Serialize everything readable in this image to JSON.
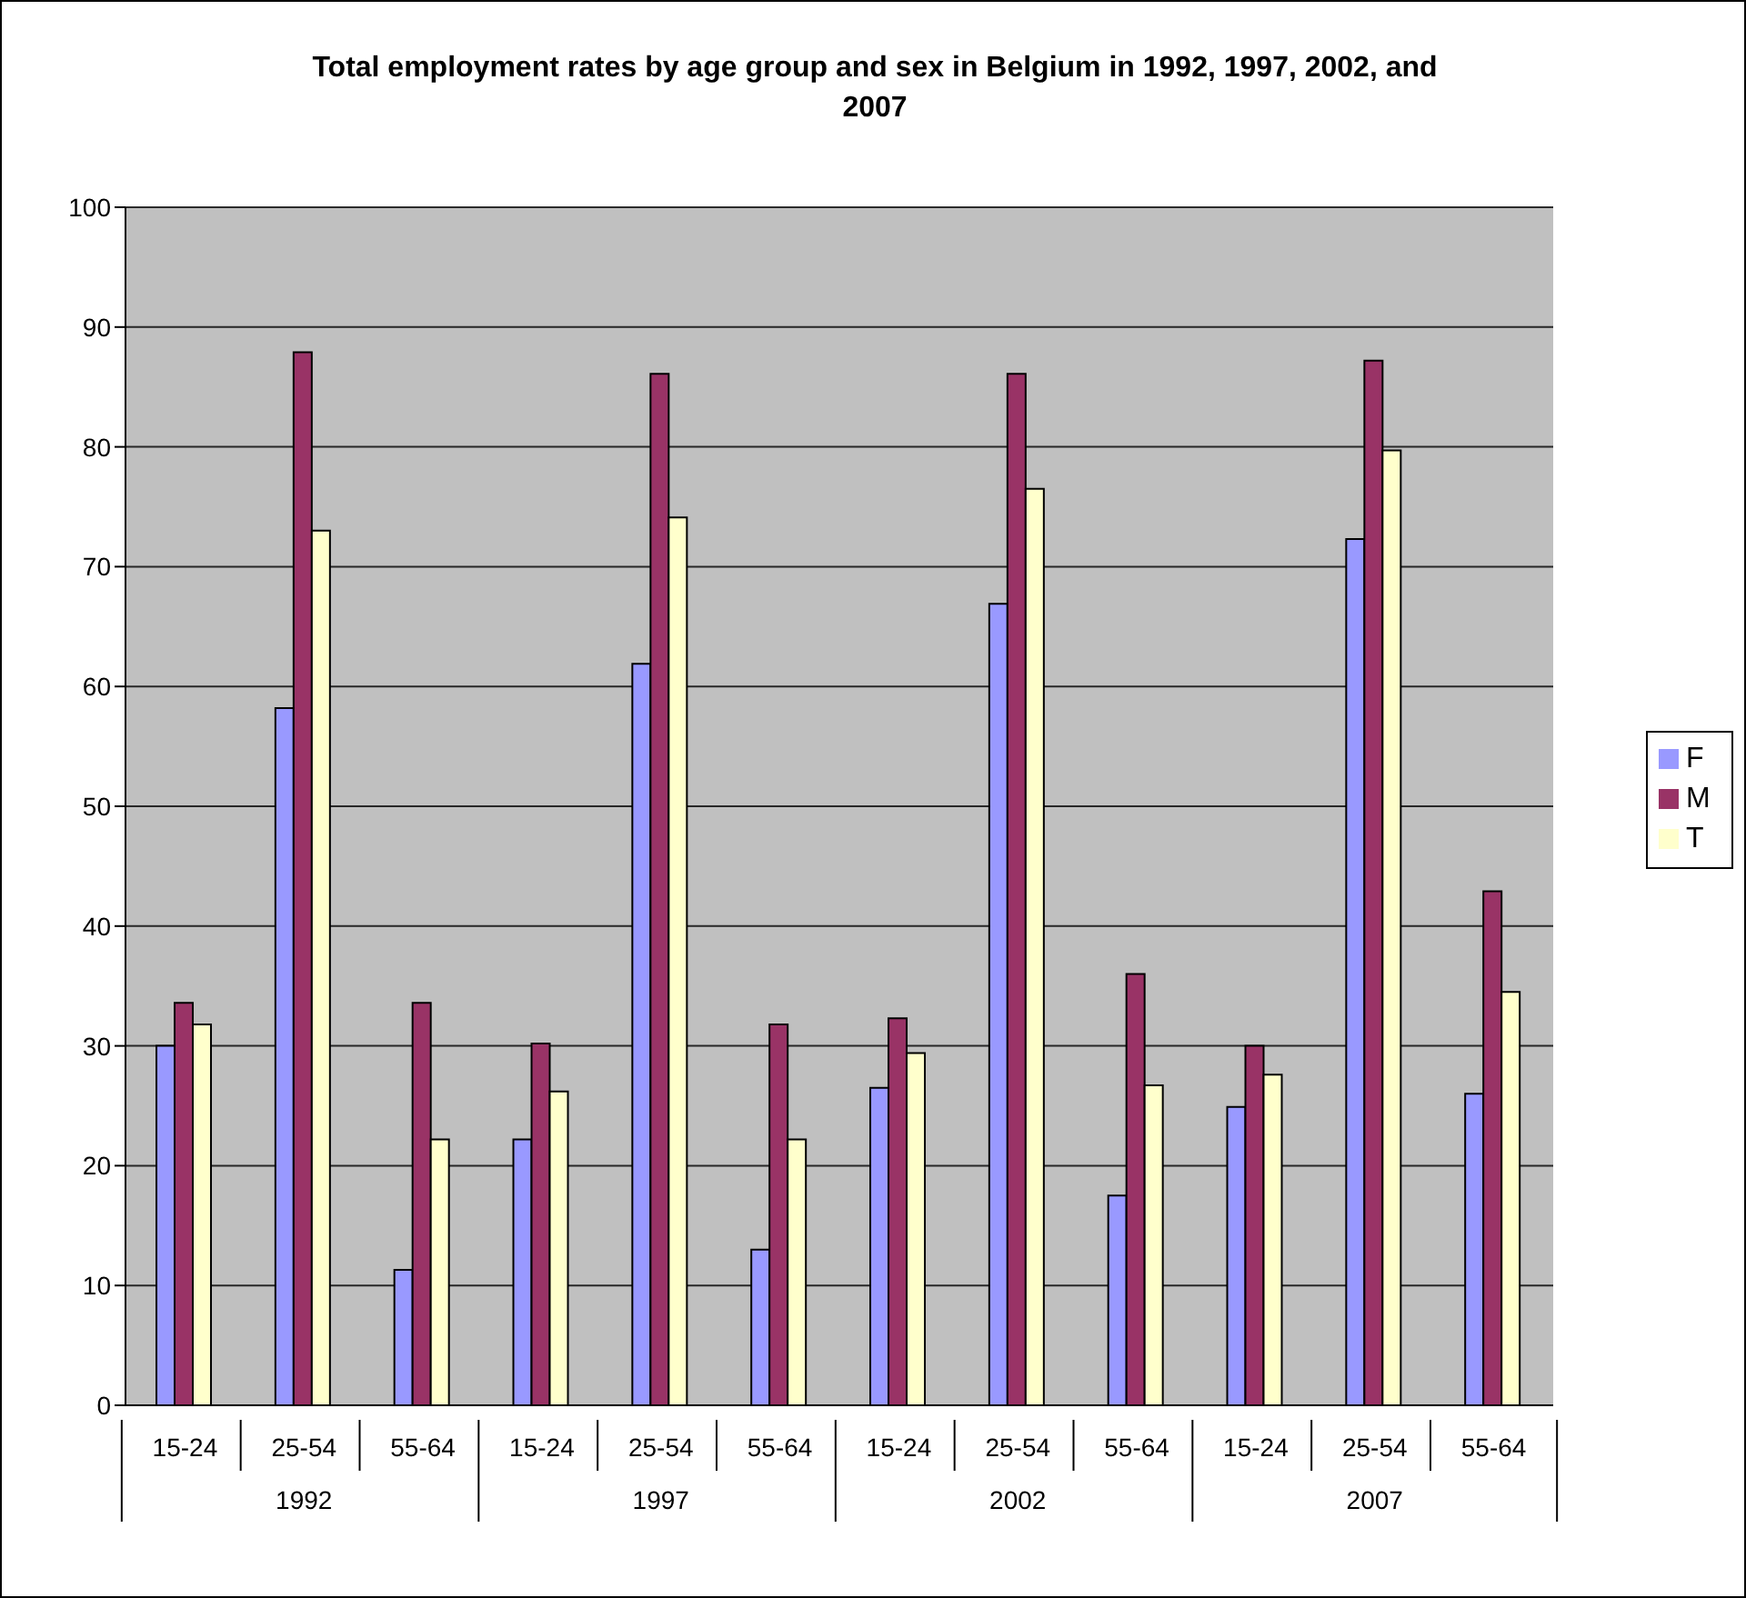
{
  "chart_data": {
    "type": "bar",
    "title": "Total employment rates by age group and sex in Belgium in 1992, 1997, 2002, and 2007",
    "categories": [
      "15-24",
      "25-54",
      "55-64",
      "15-24",
      "25-54",
      "55-64",
      "15-24",
      "25-54",
      "55-64",
      "15-24",
      "25-54",
      "55-64"
    ],
    "annotations": [
      "1992",
      "1997",
      "2002",
      "2007"
    ],
    "series": [
      {
        "name": "F",
        "color": "#9999ff",
        "values": [
          30,
          58.2,
          11.3,
          22.2,
          61.9,
          13,
          26.5,
          66.9,
          17.5,
          24.9,
          72.3,
          26
        ]
      },
      {
        "name": "M",
        "color": "#993366",
        "values": [
          33.6,
          87.9,
          33.6,
          30.2,
          86.1,
          31.8,
          32.3,
          86.1,
          36,
          30,
          87.2,
          42.9
        ]
      },
      {
        "name": "T",
        "color": "#ffffcc",
        "values": [
          31.8,
          73,
          22.2,
          26.2,
          74.1,
          22.2,
          29.4,
          76.5,
          26.7,
          27.6,
          79.7,
          34.5
        ]
      }
    ],
    "ylim": [
      0,
      100
    ],
    "yticks": [
      0,
      10,
      20,
      30,
      40,
      50,
      60,
      70,
      80,
      90,
      100
    ],
    "grid": "y",
    "legend": "right"
  }
}
